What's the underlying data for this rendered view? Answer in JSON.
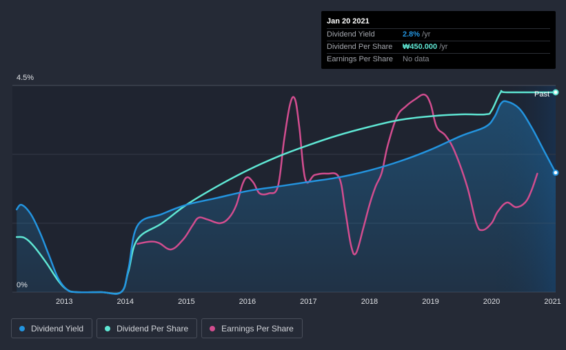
{
  "chart_data": {
    "type": "line",
    "title": "",
    "xlabel": "",
    "ylabel": "",
    "x_range": [
      2012.15,
      2021.05
    ],
    "ylim": [
      0,
      4.5
    ],
    "y_tick_labels": [
      {
        "value": 4.5,
        "label": "4.5%"
      },
      {
        "value": 0,
        "label": "0%"
      }
    ],
    "x_ticks": [
      {
        "value": 2013,
        "label": "2013"
      },
      {
        "value": 2014,
        "label": "2014"
      },
      {
        "value": 2015,
        "label": "2015"
      },
      {
        "value": 2016,
        "label": "2016"
      },
      {
        "value": 2017,
        "label": "2017"
      },
      {
        "value": 2018,
        "label": "2018"
      },
      {
        "value": 2019,
        "label": "2019"
      },
      {
        "value": 2020,
        "label": "2020"
      },
      {
        "value": 2021,
        "label": "2021"
      }
    ],
    "past_region_start": 2020.05,
    "past_label": "Past",
    "series": [
      {
        "name": "Dividend Yield",
        "color": "#2394df",
        "filled": true,
        "points": [
          [
            2012.22,
            1.8
          ],
          [
            2012.3,
            1.9
          ],
          [
            2012.45,
            1.7
          ],
          [
            2012.6,
            1.3
          ],
          [
            2012.75,
            0.8
          ],
          [
            2012.9,
            0.3
          ],
          [
            2013.05,
            0.05
          ],
          [
            2013.2,
            0
          ],
          [
            2013.6,
            0
          ],
          [
            2013.93,
            0
          ],
          [
            2014.05,
            0.5
          ],
          [
            2014.2,
            1.45
          ],
          [
            2014.6,
            1.7
          ],
          [
            2015.0,
            1.9
          ],
          [
            2015.5,
            2.05
          ],
          [
            2016.0,
            2.2
          ],
          [
            2016.5,
            2.3
          ],
          [
            2017.0,
            2.4
          ],
          [
            2017.5,
            2.5
          ],
          [
            2018.0,
            2.65
          ],
          [
            2018.5,
            2.85
          ],
          [
            2019.0,
            3.1
          ],
          [
            2019.5,
            3.4
          ],
          [
            2019.9,
            3.6
          ],
          [
            2020.05,
            3.82
          ],
          [
            2020.15,
            4.1
          ],
          [
            2020.25,
            4.15
          ],
          [
            2020.45,
            4.0
          ],
          [
            2020.65,
            3.6
          ],
          [
            2020.85,
            3.1
          ],
          [
            2021.05,
            2.6
          ]
        ]
      },
      {
        "name": "Dividend Per Share",
        "color": "#5fe7d4",
        "filled": false,
        "points": [
          [
            2012.22,
            1.2
          ],
          [
            2012.35,
            1.18
          ],
          [
            2012.5,
            1.0
          ],
          [
            2012.7,
            0.65
          ],
          [
            2012.9,
            0.25
          ],
          [
            2013.05,
            0.05
          ],
          [
            2013.2,
            0
          ],
          [
            2013.6,
            0
          ],
          [
            2013.93,
            0
          ],
          [
            2014.05,
            0.45
          ],
          [
            2014.2,
            1.15
          ],
          [
            2014.6,
            1.5
          ],
          [
            2015.0,
            1.9
          ],
          [
            2015.5,
            2.3
          ],
          [
            2016.0,
            2.65
          ],
          [
            2016.5,
            2.95
          ],
          [
            2017.0,
            3.2
          ],
          [
            2017.5,
            3.42
          ],
          [
            2018.0,
            3.6
          ],
          [
            2018.5,
            3.75
          ],
          [
            2019.0,
            3.83
          ],
          [
            2019.5,
            3.87
          ],
          [
            2019.9,
            3.87
          ],
          [
            2020.0,
            3.95
          ],
          [
            2020.15,
            4.35
          ],
          [
            2020.25,
            4.35
          ],
          [
            2021.05,
            4.35
          ]
        ]
      },
      {
        "name": "Earnings Per Share",
        "color": "#d24d8f",
        "filled": false,
        "points": [
          [
            2014.2,
            1.05
          ],
          [
            2014.4,
            1.1
          ],
          [
            2014.55,
            1.07
          ],
          [
            2014.75,
            0.93
          ],
          [
            2014.95,
            1.15
          ],
          [
            2015.1,
            1.45
          ],
          [
            2015.2,
            1.62
          ],
          [
            2015.35,
            1.58
          ],
          [
            2015.55,
            1.5
          ],
          [
            2015.7,
            1.62
          ],
          [
            2015.82,
            1.9
          ],
          [
            2015.92,
            2.35
          ],
          [
            2016.0,
            2.5
          ],
          [
            2016.1,
            2.38
          ],
          [
            2016.2,
            2.15
          ],
          [
            2016.35,
            2.15
          ],
          [
            2016.5,
            2.3
          ],
          [
            2016.6,
            3.3
          ],
          [
            2016.7,
            4.1
          ],
          [
            2016.78,
            4.2
          ],
          [
            2016.85,
            3.6
          ],
          [
            2016.95,
            2.45
          ],
          [
            2017.1,
            2.55
          ],
          [
            2017.3,
            2.58
          ],
          [
            2017.5,
            2.5
          ],
          [
            2017.6,
            1.8
          ],
          [
            2017.7,
            1.0
          ],
          [
            2017.78,
            0.85
          ],
          [
            2017.9,
            1.4
          ],
          [
            2018.0,
            1.9
          ],
          [
            2018.1,
            2.3
          ],
          [
            2018.2,
            2.6
          ],
          [
            2018.3,
            3.2
          ],
          [
            2018.45,
            3.82
          ],
          [
            2018.6,
            4.05
          ],
          [
            2018.75,
            4.2
          ],
          [
            2018.9,
            4.3
          ],
          [
            2019.0,
            4.1
          ],
          [
            2019.1,
            3.6
          ],
          [
            2019.25,
            3.4
          ],
          [
            2019.4,
            3.05
          ],
          [
            2019.6,
            2.3
          ],
          [
            2019.75,
            1.5
          ],
          [
            2019.85,
            1.35
          ],
          [
            2020.0,
            1.5
          ],
          [
            2020.1,
            1.75
          ],
          [
            2020.25,
            1.95
          ],
          [
            2020.4,
            1.85
          ],
          [
            2020.55,
            1.95
          ],
          [
            2020.65,
            2.2
          ],
          [
            2020.75,
            2.58
          ]
        ]
      }
    ],
    "legend_position": "bottom-left"
  },
  "tooltip": {
    "date": "Jan 20 2021",
    "rows": [
      {
        "label": "Dividend Yield",
        "value": "2.8%",
        "unit": " /yr"
      },
      {
        "label": "Dividend Per Share",
        "value": "₩450.000",
        "unit": " /yr"
      },
      {
        "label": "Earnings Per Share",
        "value": "No data",
        "unit": ""
      }
    ]
  },
  "legend": [
    {
      "label": "Dividend Yield",
      "color": "#2394df"
    },
    {
      "label": "Dividend Per Share",
      "color": "#5fe7d4"
    },
    {
      "label": "Earnings Per Share",
      "color": "#d24d8f"
    }
  ],
  "colors": {
    "background": "#252a36",
    "grid": "#343a47",
    "past_shade": "#1b2a44",
    "axis_text": "#e0e2e6"
  }
}
